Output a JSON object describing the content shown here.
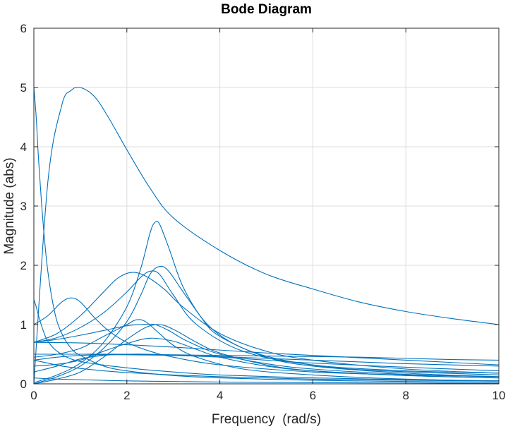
{
  "chart_data": {
    "type": "line",
    "title": "Bode Diagram",
    "xlabel": "Frequency  (rad/s)",
    "ylabel": "Magnitude (abs)",
    "xlim": [
      0,
      10
    ],
    "ylim": [
      0,
      6
    ],
    "xticks": [
      0,
      2,
      4,
      6,
      8,
      10
    ],
    "yticks": [
      0,
      1,
      2,
      3,
      4,
      5,
      6
    ],
    "grid": true,
    "legend": "none",
    "line_color": "#0072BD",
    "series": [
      {
        "x": [
          0,
          0.3,
          0.6,
          0.8,
          1,
          1.3,
          1.6,
          2,
          2.5,
          3,
          4,
          5,
          6,
          7,
          8,
          9,
          10
        ],
        "y": [
          0,
          3.4,
          4.7,
          4.95,
          5.0,
          4.85,
          4.5,
          3.95,
          3.3,
          2.8,
          2.25,
          1.85,
          1.6,
          1.38,
          1.22,
          1.1,
          1.0
        ]
      },
      {
        "x": [
          0,
          0.05,
          0.1,
          0.2,
          0.3,
          0.45,
          0.6,
          0.8,
          1,
          1.5,
          2,
          3,
          4,
          6,
          8,
          10
        ],
        "y": [
          5.0,
          4.5,
          3.8,
          2.7,
          1.9,
          1.2,
          0.85,
          0.6,
          0.48,
          0.3,
          0.22,
          0.14,
          0.1,
          0.06,
          0.04,
          0.03
        ]
      },
      {
        "x": [
          0,
          0.3,
          0.6,
          0.8,
          1,
          1.3,
          1.6,
          2,
          2.5,
          3,
          4,
          6,
          8,
          10
        ],
        "y": [
          1.0,
          1.15,
          1.38,
          1.45,
          1.38,
          1.12,
          0.9,
          0.7,
          0.55,
          0.45,
          0.32,
          0.2,
          0.15,
          0.12
        ]
      },
      {
        "x": [
          0,
          0.5,
          1,
          1.5,
          2,
          2.3,
          2.5,
          2.6,
          2.7,
          2.9,
          3.2,
          3.6,
          4,
          5,
          6,
          8,
          10
        ],
        "y": [
          0.02,
          0.15,
          0.35,
          0.7,
          1.3,
          1.95,
          2.55,
          2.72,
          2.7,
          2.3,
          1.65,
          1.12,
          0.8,
          0.45,
          0.3,
          0.18,
          0.12
        ]
      },
      {
        "x": [
          0,
          0.5,
          1,
          1.5,
          1.8,
          2.1,
          2.4,
          2.8,
          3.2,
          4,
          5,
          6,
          8,
          10
        ],
        "y": [
          0.7,
          0.85,
          1.15,
          1.55,
          1.78,
          1.88,
          1.82,
          1.6,
          1.3,
          0.85,
          0.55,
          0.4,
          0.25,
          0.18
        ]
      },
      {
        "x": [
          0,
          0.5,
          1,
          1.5,
          2,
          2.3,
          2.5,
          2.7,
          2.9,
          3.3,
          3.8,
          4.5,
          5.5,
          7,
          10
        ],
        "y": [
          0,
          0.12,
          0.3,
          0.6,
          1.05,
          1.5,
          1.85,
          1.98,
          1.9,
          1.45,
          0.95,
          0.6,
          0.38,
          0.24,
          0.15
        ]
      },
      {
        "x": [
          0,
          0.5,
          1,
          1.5,
          2,
          2.3,
          2.5,
          2.7,
          3,
          3.5,
          4.5,
          6,
          8,
          10
        ],
        "y": [
          0.7,
          0.78,
          0.95,
          1.2,
          1.55,
          1.8,
          1.9,
          1.85,
          1.5,
          1.0,
          0.55,
          0.32,
          0.22,
          0.18
        ]
      },
      {
        "x": [
          0,
          0.5,
          1,
          1.5,
          2,
          2.2,
          2.4,
          2.7,
          3,
          3.5,
          4.5,
          6,
          8,
          10
        ],
        "y": [
          0.45,
          0.5,
          0.6,
          0.8,
          1.0,
          1.08,
          1.05,
          0.85,
          0.65,
          0.45,
          0.25,
          0.15,
          0.08,
          0.05
        ]
      },
      {
        "x": [
          0,
          0.5,
          1,
          1.5,
          2,
          2.3,
          2.6,
          2.9,
          3.3,
          4,
          5,
          6,
          8,
          10
        ],
        "y": [
          0.7,
          0.75,
          0.82,
          0.9,
          0.98,
          1.0,
          1.0,
          0.9,
          0.72,
          0.5,
          0.34,
          0.25,
          0.16,
          0.12
        ]
      },
      {
        "x": [
          0,
          0.5,
          1,
          1.5,
          2,
          2.4,
          2.7,
          3,
          3.5,
          4,
          5,
          6,
          8,
          10
        ],
        "y": [
          0,
          0.08,
          0.2,
          0.45,
          0.75,
          0.95,
          1.0,
          0.92,
          0.7,
          0.52,
          0.32,
          0.22,
          0.14,
          0.1
        ]
      },
      {
        "x": [
          0,
          0.5,
          1,
          1.5,
          2,
          2.5,
          3,
          3.5,
          4,
          5,
          6,
          8,
          10
        ],
        "y": [
          0.3,
          0.33,
          0.4,
          0.55,
          0.68,
          0.77,
          0.72,
          0.58,
          0.45,
          0.3,
          0.22,
          0.14,
          0.1
        ]
      },
      {
        "x": [
          0,
          1,
          2,
          3,
          4,
          5,
          6,
          7,
          8,
          9,
          10
        ],
        "y": [
          0.7,
          0.69,
          0.66,
          0.62,
          0.57,
          0.52,
          0.48,
          0.44,
          0.4,
          0.36,
          0.32
        ]
      },
      {
        "x": [
          0,
          1,
          2,
          3,
          4,
          5,
          6,
          7,
          8,
          9,
          10
        ],
        "y": [
          0.5,
          0.5,
          0.5,
          0.49,
          0.48,
          0.47,
          0.46,
          0.45,
          0.43,
          0.41,
          0.4
        ]
      },
      {
        "x": [
          0,
          0.5,
          1,
          1.5,
          2,
          2.5,
          3,
          4,
          5,
          6,
          8,
          10
        ],
        "y": [
          0.2,
          0.3,
          0.42,
          0.48,
          0.5,
          0.5,
          0.48,
          0.45,
          0.4,
          0.35,
          0.28,
          0.22
        ]
      },
      {
        "x": [
          0,
          0.5,
          1,
          1.5,
          2,
          3,
          4,
          5,
          6,
          7,
          8,
          10
        ],
        "y": [
          0.4,
          0.45,
          0.48,
          0.49,
          0.49,
          0.48,
          0.46,
          0.43,
          0.4,
          0.37,
          0.34,
          0.3
        ]
      },
      {
        "x": [
          0,
          0.05,
          0.1,
          0.2,
          0.3,
          0.5,
          0.8,
          1.2,
          2,
          3,
          4,
          6,
          8,
          10
        ],
        "y": [
          1.42,
          1.3,
          1.15,
          0.9,
          0.72,
          0.55,
          0.42,
          0.35,
          0.27,
          0.2,
          0.15,
          0.1,
          0.07,
          0.05
        ]
      },
      {
        "x": [
          0,
          0.3,
          0.6,
          1,
          1.5,
          2,
          3,
          4,
          5,
          6,
          8,
          10
        ],
        "y": [
          0.4,
          0.35,
          0.3,
          0.26,
          0.22,
          0.19,
          0.15,
          0.12,
          0.1,
          0.08,
          0.06,
          0.05
        ]
      },
      {
        "x": [
          0,
          0.2,
          0.5,
          1,
          2,
          3,
          4,
          6,
          8,
          10
        ],
        "y": [
          0.1,
          0.09,
          0.08,
          0.07,
          0.05,
          0.04,
          0.03,
          0.02,
          0.015,
          0.01
        ]
      }
    ]
  }
}
